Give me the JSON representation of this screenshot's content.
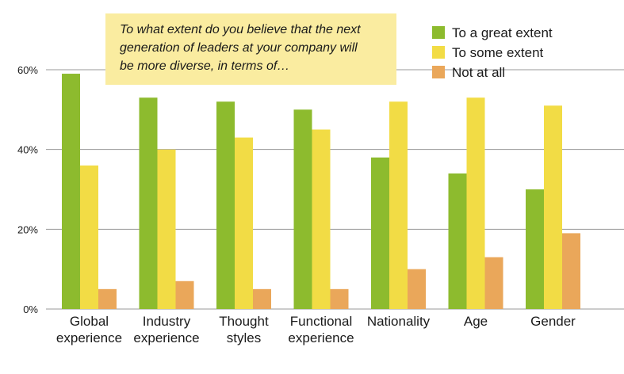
{
  "chart_data": {
    "type": "bar",
    "title": "To what extent do you believe that the next generation of leaders at your company will be more diverse, in terms of…",
    "title_lines": [
      "To what extent do you believe that the next",
      "generation of leaders at your company will",
      "be more diverse, in terms of…"
    ],
    "categories": [
      [
        "Global",
        "experience"
      ],
      [
        "Industry",
        "experience"
      ],
      [
        "Thought",
        "styles"
      ],
      [
        "Functional",
        "experience"
      ],
      [
        "Nationality"
      ],
      [
        "Age"
      ],
      [
        "Gender"
      ]
    ],
    "series": [
      {
        "name": "To a great extent",
        "color": "#8dbb2e",
        "values": [
          59,
          53,
          52,
          50,
          38,
          34,
          30
        ]
      },
      {
        "name": "To some extent",
        "color": "#f2dc45",
        "values": [
          36,
          40,
          43,
          45,
          52,
          53,
          51
        ]
      },
      {
        "name": "Not at all",
        "color": "#eaa75a",
        "values": [
          5,
          7,
          5,
          5,
          10,
          13,
          19
        ]
      }
    ],
    "yticks": [
      0,
      20,
      40,
      60
    ],
    "ytick_labels": [
      "0%",
      "20%",
      "40%",
      "60%"
    ],
    "ylim": [
      0,
      60
    ],
    "grid": true,
    "legend_position": "top-right",
    "title_box_color": "#faeca0",
    "xlabel": "",
    "ylabel": ""
  }
}
